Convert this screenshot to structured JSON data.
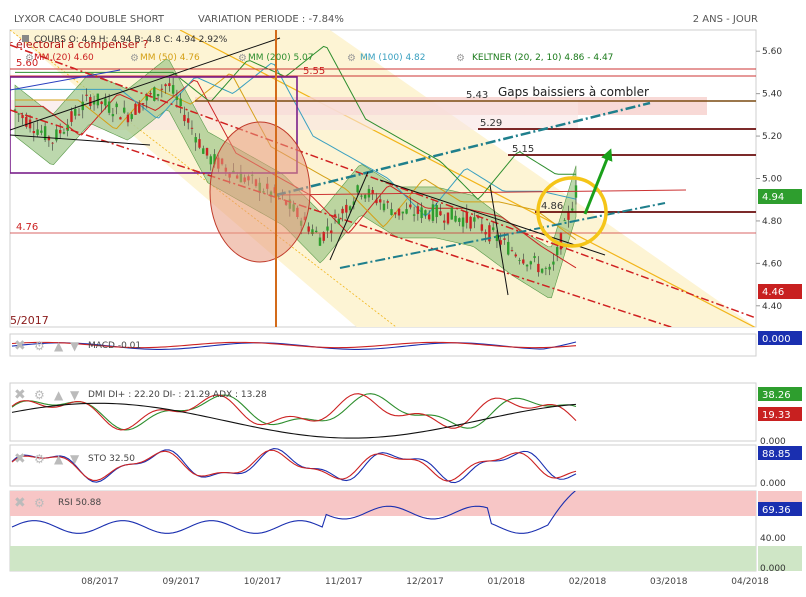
{
  "header": {
    "title": "LYXOR CAC40 DOUBLE SHORT",
    "variation": "VARIATION PERIODE : -7.84%",
    "period": "2 ANS - JOUR"
  },
  "legend": {
    "ohlc": "COURS    O: 4.9    H: 4.94    B: 4.8    C: 4.94  2.92%",
    "mm20": "MM (20)  4.60",
    "mm50": "MM (50)  4.76",
    "mm200": "MM (200)  5.07",
    "mm100": "MM (100)  4.82",
    "keltner": "KELTNER (20, 2, 10)  4.86 - 4.47"
  },
  "annotations": {
    "electoral": "r électoral à compenser ?",
    "gaps": "Gaps baissiers à combler",
    "year_tag": "5/2017",
    "v560": "5.60",
    "v555": "5.55",
    "v543": "5.43",
    "v529": "5.29",
    "v515": "5.15",
    "v486": "4.86",
    "v476": "4.76"
  },
  "price_badges": {
    "last": "4.94",
    "low": "4.46"
  },
  "colors": {
    "up": "#2e9e2e",
    "down": "#cc2222",
    "keltner_fill": "#9fc88a",
    "target_arrow": "#1aa01a",
    "circle": "#f5c518",
    "channel": "#1f7f8c",
    "resistance": "#7a1010"
  },
  "chart_data": [
    {
      "type": "line",
      "panel": "price",
      "x": [
        "2017-06-20",
        "2017-07-05",
        "2017-07-20",
        "2017-08-04",
        "2017-08-20",
        "2017-09-05",
        "2017-09-20",
        "2017-10-05",
        "2017-10-20",
        "2017-11-05",
        "2017-11-20",
        "2017-12-05",
        "2017-12-20",
        "2018-01-05",
        "2018-01-20",
        "2018-01-30"
      ],
      "series": [
        {
          "values": [
            5.32,
            5.18,
            5.38,
            5.3,
            5.45,
            5.1,
            5.0,
            4.9,
            4.72,
            4.95,
            4.84,
            4.84,
            4.8,
            4.66,
            4.55,
            4.94
          ]
        }
      ],
      "ylim": [
        4.3,
        5.7
      ],
      "y_ticks": [
        "5.60",
        "5.40",
        "5.20",
        "5.00",
        "4.80",
        "4.60",
        "4.40"
      ],
      "x_ticks": [
        "08/2017",
        "09/2017",
        "10/2017",
        "11/2017",
        "12/2017",
        "01/2018",
        "02/2018",
        "03/2018",
        "04/2018"
      ]
    },
    {
      "type": "line",
      "panel": "MACD",
      "label": "MACD -0.01",
      "badge": "0.000"
    },
    {
      "type": "line",
      "panel": "DMI",
      "label": "DMI  DI+ : 22.20  DI- : 21.29  ADX : 13.28",
      "badges": [
        "38.26",
        "19.33"
      ],
      "y_ticks": [
        "0.000"
      ]
    },
    {
      "type": "line",
      "panel": "STO",
      "label": "STO  32.50",
      "badge": "88.85",
      "y_ticks": [
        "0.000"
      ]
    },
    {
      "type": "line",
      "panel": "RSI",
      "label": "RSI  50.88",
      "badge": "69.36",
      "y_ticks": [
        "40.00",
        "0.000"
      ]
    }
  ]
}
